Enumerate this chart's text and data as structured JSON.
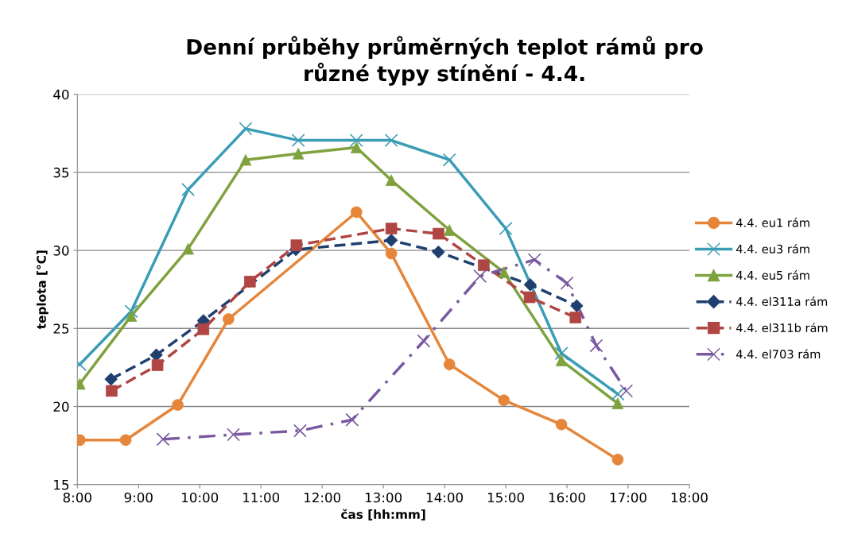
{
  "chart_data": {
    "type": "line",
    "title": "Denní průběhy průměrných teplot rámů pro\nrůzné typy stínění - 4.4.",
    "xlabel": "čas [hh:mm]",
    "ylabel": "teplota [°C]",
    "xlim": [
      8,
      18
    ],
    "xticks": [
      {
        "value": 8,
        "label": "8:00"
      },
      {
        "value": 9,
        "label": "9:00"
      },
      {
        "value": 10,
        "label": "10:00"
      },
      {
        "value": 11,
        "label": "11:00"
      },
      {
        "value": 12,
        "label": "12:00"
      },
      {
        "value": 13,
        "label": "13:00"
      },
      {
        "value": 14,
        "label": "14:00"
      },
      {
        "value": 15,
        "label": "15:00"
      },
      {
        "value": 16,
        "label": "16:00"
      },
      {
        "value": 17,
        "label": "17:00"
      },
      {
        "value": 18,
        "label": "18:00"
      }
    ],
    "ylim": [
      15,
      40
    ],
    "yticks": [
      15,
      20,
      25,
      30,
      35,
      40
    ],
    "grid": "y",
    "legend": "right",
    "series": [
      {
        "name": "4.4. eu1 rám",
        "color": "#e5863a",
        "marker": "circle",
        "line_style": "solid",
        "x": [
          8.04,
          8.79,
          9.64,
          10.47,
          12.56,
          13.13,
          14.08,
          14.97,
          15.91,
          16.83
        ],
        "values": [
          17.85,
          17.85,
          20.1,
          25.6,
          32.45,
          29.8,
          22.7,
          20.4,
          18.85,
          16.6
        ]
      },
      {
        "name": "4.4. eu3 rám",
        "color": "#3a9cb5",
        "marker": "cross",
        "line_style": "solid",
        "x": [
          8.04,
          8.88,
          9.81,
          10.75,
          11.61,
          12.56,
          13.13,
          14.08,
          15.0,
          15.91,
          16.83
        ],
        "values": [
          22.7,
          26.1,
          33.9,
          37.8,
          37.05,
          37.05,
          37.05,
          35.8,
          31.4,
          23.4,
          20.8
        ]
      },
      {
        "name": "4.4. eu5 rám",
        "color": "#7fa23f",
        "marker": "triangle",
        "line_style": "solid",
        "x": [
          8.04,
          8.88,
          9.81,
          10.75,
          11.61,
          12.56,
          13.13,
          14.08,
          14.97,
          15.91,
          16.83
        ],
        "values": [
          21.45,
          25.8,
          30.1,
          35.8,
          36.2,
          36.6,
          34.5,
          31.3,
          28.6,
          22.95,
          20.2
        ]
      },
      {
        "name": "4.4. el311a rám",
        "color": "#1f3f6e",
        "marker": "diamond",
        "line_style": "dashed",
        "x": [
          8.55,
          9.29,
          10.06,
          11.57,
          13.13,
          13.9,
          15.4,
          16.16
        ],
        "values": [
          21.75,
          23.3,
          25.5,
          30.05,
          30.65,
          29.9,
          27.8,
          26.45
        ]
      },
      {
        "name": "4.4. el311b rám",
        "color": "#b04644",
        "marker": "square",
        "line_style": "dashed",
        "x": [
          8.56,
          9.31,
          10.06,
          10.82,
          11.58,
          13.13,
          13.9,
          14.64,
          15.39,
          16.14
        ],
        "values": [
          21.0,
          22.65,
          24.95,
          28.0,
          30.33,
          31.4,
          31.07,
          29.05,
          27.0,
          25.7
        ]
      },
      {
        "name": "4.4. el703 rám",
        "color": "#7a59a0",
        "marker": "cross",
        "line_style": "dashdot",
        "x": [
          9.4,
          10.55,
          11.64,
          12.49,
          13.66,
          14.58,
          15.47,
          16.0,
          16.48,
          16.97
        ],
        "values": [
          17.9,
          18.2,
          18.45,
          19.15,
          24.2,
          28.35,
          29.4,
          27.9,
          23.9,
          21.0
        ]
      }
    ]
  }
}
